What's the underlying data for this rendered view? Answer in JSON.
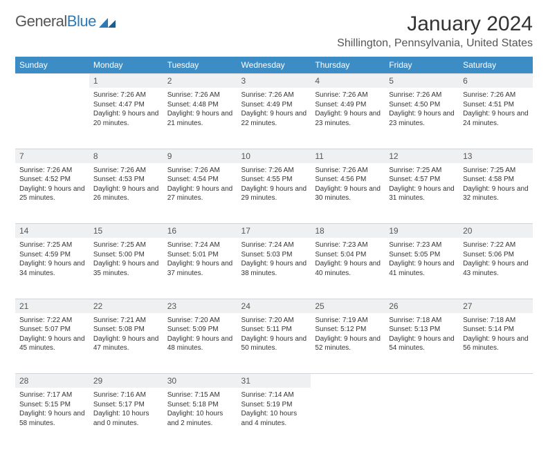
{
  "logo": {
    "text1": "General",
    "text2": "Blue"
  },
  "title": "January 2024",
  "location": "Shillington, Pennsylvania, United States",
  "colors": {
    "header_bg": "#3c8dc5",
    "header_text": "#ffffff",
    "daynum_bg": "#eef0f2",
    "border": "#d0d4d8",
    "text": "#333333",
    "logo_gray": "#555555",
    "logo_blue": "#2a7ab8"
  },
  "dayNames": [
    "Sunday",
    "Monday",
    "Tuesday",
    "Wednesday",
    "Thursday",
    "Friday",
    "Saturday"
  ],
  "weeks": [
    [
      null,
      {
        "n": "1",
        "sr": "7:26 AM",
        "ss": "4:47 PM",
        "dl": "9 hours and 20 minutes."
      },
      {
        "n": "2",
        "sr": "7:26 AM",
        "ss": "4:48 PM",
        "dl": "9 hours and 21 minutes."
      },
      {
        "n": "3",
        "sr": "7:26 AM",
        "ss": "4:49 PM",
        "dl": "9 hours and 22 minutes."
      },
      {
        "n": "4",
        "sr": "7:26 AM",
        "ss": "4:49 PM",
        "dl": "9 hours and 23 minutes."
      },
      {
        "n": "5",
        "sr": "7:26 AM",
        "ss": "4:50 PM",
        "dl": "9 hours and 23 minutes."
      },
      {
        "n": "6",
        "sr": "7:26 AM",
        "ss": "4:51 PM",
        "dl": "9 hours and 24 minutes."
      }
    ],
    [
      {
        "n": "7",
        "sr": "7:26 AM",
        "ss": "4:52 PM",
        "dl": "9 hours and 25 minutes."
      },
      {
        "n": "8",
        "sr": "7:26 AM",
        "ss": "4:53 PM",
        "dl": "9 hours and 26 minutes."
      },
      {
        "n": "9",
        "sr": "7:26 AM",
        "ss": "4:54 PM",
        "dl": "9 hours and 27 minutes."
      },
      {
        "n": "10",
        "sr": "7:26 AM",
        "ss": "4:55 PM",
        "dl": "9 hours and 29 minutes."
      },
      {
        "n": "11",
        "sr": "7:26 AM",
        "ss": "4:56 PM",
        "dl": "9 hours and 30 minutes."
      },
      {
        "n": "12",
        "sr": "7:25 AM",
        "ss": "4:57 PM",
        "dl": "9 hours and 31 minutes."
      },
      {
        "n": "13",
        "sr": "7:25 AM",
        "ss": "4:58 PM",
        "dl": "9 hours and 32 minutes."
      }
    ],
    [
      {
        "n": "14",
        "sr": "7:25 AM",
        "ss": "4:59 PM",
        "dl": "9 hours and 34 minutes."
      },
      {
        "n": "15",
        "sr": "7:25 AM",
        "ss": "5:00 PM",
        "dl": "9 hours and 35 minutes."
      },
      {
        "n": "16",
        "sr": "7:24 AM",
        "ss": "5:01 PM",
        "dl": "9 hours and 37 minutes."
      },
      {
        "n": "17",
        "sr": "7:24 AM",
        "ss": "5:03 PM",
        "dl": "9 hours and 38 minutes."
      },
      {
        "n": "18",
        "sr": "7:23 AM",
        "ss": "5:04 PM",
        "dl": "9 hours and 40 minutes."
      },
      {
        "n": "19",
        "sr": "7:23 AM",
        "ss": "5:05 PM",
        "dl": "9 hours and 41 minutes."
      },
      {
        "n": "20",
        "sr": "7:22 AM",
        "ss": "5:06 PM",
        "dl": "9 hours and 43 minutes."
      }
    ],
    [
      {
        "n": "21",
        "sr": "7:22 AM",
        "ss": "5:07 PM",
        "dl": "9 hours and 45 minutes."
      },
      {
        "n": "22",
        "sr": "7:21 AM",
        "ss": "5:08 PM",
        "dl": "9 hours and 47 minutes."
      },
      {
        "n": "23",
        "sr": "7:20 AM",
        "ss": "5:09 PM",
        "dl": "9 hours and 48 minutes."
      },
      {
        "n": "24",
        "sr": "7:20 AM",
        "ss": "5:11 PM",
        "dl": "9 hours and 50 minutes."
      },
      {
        "n": "25",
        "sr": "7:19 AM",
        "ss": "5:12 PM",
        "dl": "9 hours and 52 minutes."
      },
      {
        "n": "26",
        "sr": "7:18 AM",
        "ss": "5:13 PM",
        "dl": "9 hours and 54 minutes."
      },
      {
        "n": "27",
        "sr": "7:18 AM",
        "ss": "5:14 PM",
        "dl": "9 hours and 56 minutes."
      }
    ],
    [
      {
        "n": "28",
        "sr": "7:17 AM",
        "ss": "5:15 PM",
        "dl": "9 hours and 58 minutes."
      },
      {
        "n": "29",
        "sr": "7:16 AM",
        "ss": "5:17 PM",
        "dl": "10 hours and 0 minutes."
      },
      {
        "n": "30",
        "sr": "7:15 AM",
        "ss": "5:18 PM",
        "dl": "10 hours and 2 minutes."
      },
      {
        "n": "31",
        "sr": "7:14 AM",
        "ss": "5:19 PM",
        "dl": "10 hours and 4 minutes."
      },
      null,
      null,
      null
    ]
  ],
  "labels": {
    "sunrise": "Sunrise:",
    "sunset": "Sunset:",
    "daylight": "Daylight:"
  }
}
